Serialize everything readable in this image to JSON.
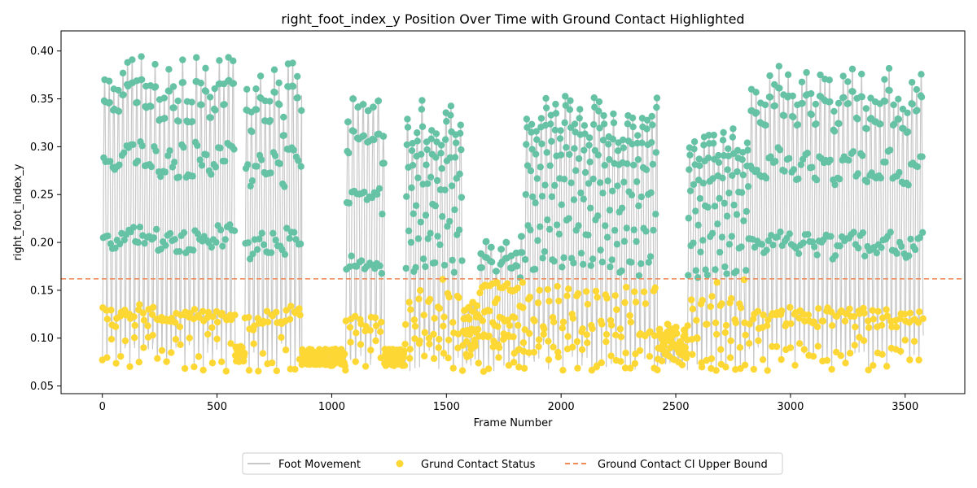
{
  "colors": {
    "line": "#c8c8c8",
    "contact": "#fdd835",
    "swing": "#66c2a5",
    "threshold": "#f08c5a",
    "axes": "#000000"
  },
  "chart_data": {
    "type": "line",
    "title": "right_foot_index_y Position Over Time with Ground Contact Highlighted",
    "xlabel": "Frame Number",
    "ylabel": "right_foot_index_y",
    "xlim": [
      -180,
      3760
    ],
    "ylim": [
      0.042,
      0.421
    ],
    "xticks": [
      0,
      500,
      1000,
      1500,
      2000,
      2500,
      3000,
      3500
    ],
    "yticks": [
      0.05,
      0.1,
      0.15,
      0.2,
      0.25,
      0.3,
      0.35,
      0.4
    ],
    "ytick_labels": [
      "0.05",
      "0.10",
      "0.15",
      "0.20",
      "0.25",
      "0.30",
      "0.35",
      "0.40"
    ],
    "threshold": 0.162,
    "frame_count": 3580,
    "grid": false,
    "legend_position": "bottom-center",
    "series": [
      {
        "name": "Foot Movement",
        "kind": "line",
        "color": "#c8c8c8"
      },
      {
        "name": "Grund Contact Status",
        "kind": "scatter",
        "color": "#fdd835"
      },
      {
        "name": "Ground Contact CI Upper Bound",
        "kind": "dashed-line",
        "color": "#f08c5a"
      }
    ],
    "segments": [
      {
        "start": 0,
        "end": 580,
        "type": "active",
        "peak": 0.37,
        "period": 20,
        "peakJitter": 0.025
      },
      {
        "start": 580,
        "end": 620,
        "type": "flat",
        "base": 0.083
      },
      {
        "start": 620,
        "end": 870,
        "type": "active",
        "peak": 0.36,
        "period": 20,
        "peakJitter": 0.03
      },
      {
        "start": 870,
        "end": 1060,
        "type": "flat",
        "base": 0.08
      },
      {
        "start": 1060,
        "end": 1230,
        "type": "active",
        "peak": 0.33,
        "period": 22,
        "peakJitter": 0.03
      },
      {
        "start": 1230,
        "end": 1320,
        "type": "flat",
        "base": 0.08
      },
      {
        "start": 1320,
        "end": 1570,
        "type": "active",
        "peak": 0.33,
        "period": 21,
        "peakJitter": 0.03
      },
      {
        "start": 1570,
        "end": 1640,
        "type": "low",
        "peak": 0.13,
        "period": 18,
        "peakJitter": 0.01
      },
      {
        "start": 1640,
        "end": 1840,
        "type": "active",
        "peak": 0.19,
        "period": 22,
        "peakJitter": 0.02
      },
      {
        "start": 1840,
        "end": 2420,
        "type": "active",
        "peak": 0.33,
        "period": 21,
        "peakJitter": 0.025
      },
      {
        "start": 2420,
        "end": 2550,
        "type": "low",
        "peak": 0.11,
        "period": 18,
        "peakJitter": 0.015
      },
      {
        "start": 2550,
        "end": 2820,
        "type": "active",
        "peak": 0.3,
        "period": 21,
        "peakJitter": 0.02
      },
      {
        "start": 2820,
        "end": 3580,
        "type": "active",
        "peak": 0.36,
        "period": 20,
        "peakJitter": 0.025
      }
    ]
  }
}
